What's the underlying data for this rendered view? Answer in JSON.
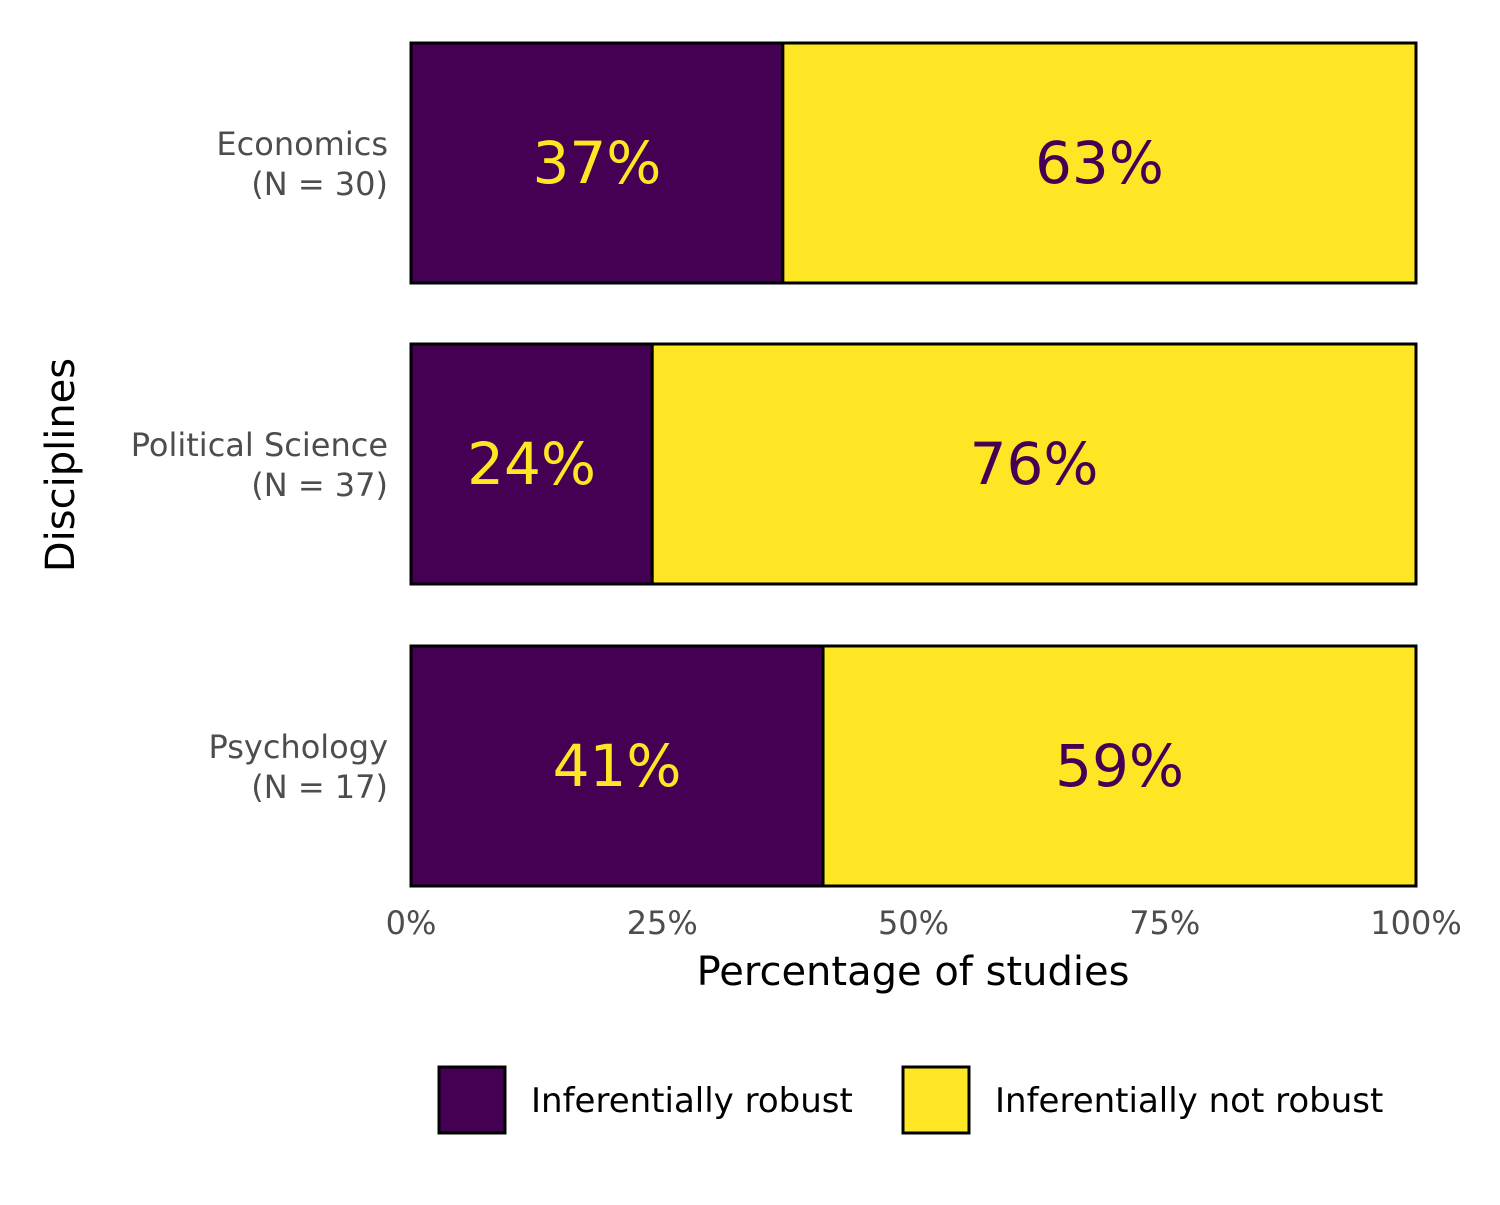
{
  "chart_data": {
    "type": "bar",
    "orientation": "horizontal",
    "stacked": true,
    "categories": [
      {
        "name": "Economics",
        "n_label": "(N = 30)"
      },
      {
        "name": "Political Science",
        "n_label": "(N = 37)"
      },
      {
        "name": "Psychology",
        "n_label": "(N = 17)"
      }
    ],
    "series": [
      {
        "name": "Inferentially robust",
        "values": [
          37,
          24,
          41
        ],
        "labels": [
          "37%",
          "24%",
          "41%"
        ],
        "color": "#440154",
        "label_color": "#FDE725"
      },
      {
        "name": "Inferentially not robust",
        "values": [
          63,
          76,
          59
        ],
        "labels": [
          "63%",
          "76%",
          "59%"
        ],
        "color": "#FDE725",
        "label_color": "#440154"
      }
    ],
    "xlabel": "Percentage of studies",
    "ylabel": "Disciplines",
    "xlim": [
      0,
      100
    ],
    "xticks": [
      0,
      25,
      50,
      75,
      100
    ],
    "xtick_labels": [
      "0%",
      "25%",
      "50%",
      "75%",
      "100%"
    ],
    "grid": false,
    "legend_position": "bottom"
  }
}
